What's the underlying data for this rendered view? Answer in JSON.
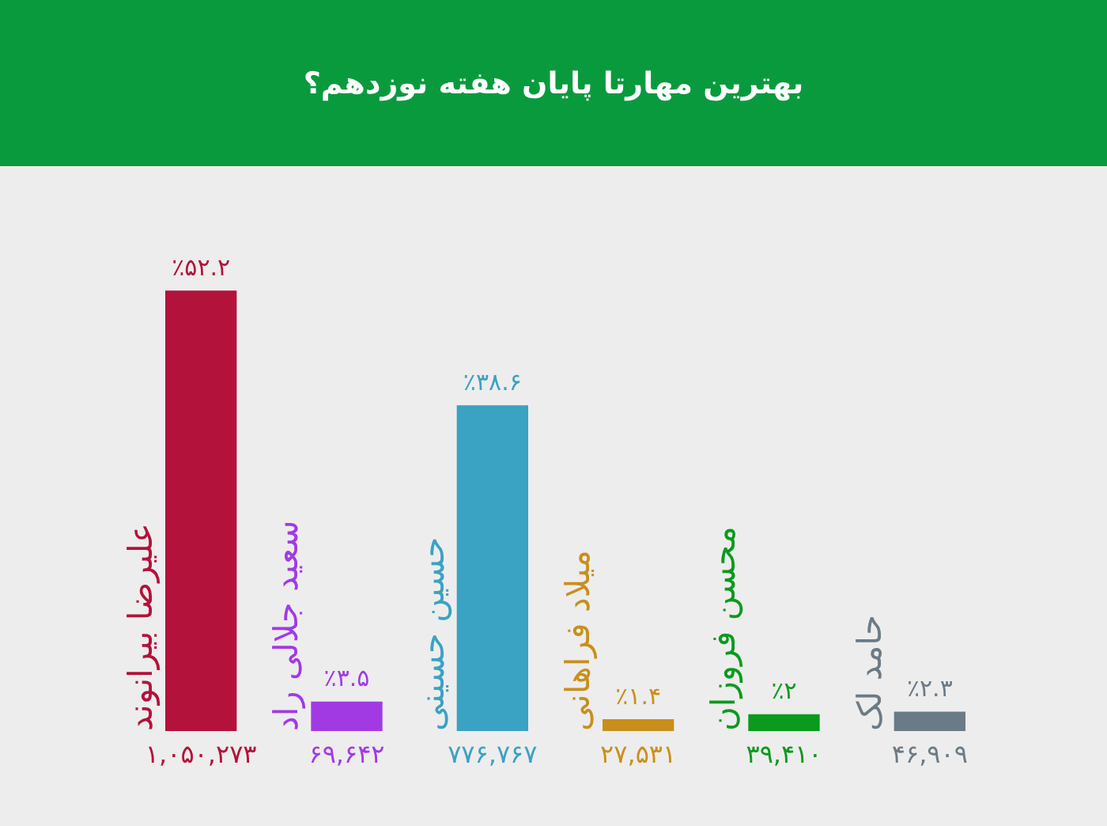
{
  "chart_data": {
    "type": "bar",
    "title": "بهترین مهارتا پایان هفته نوزدهم؟",
    "categories": [
      "علیرضا بیرانوند",
      "سعید جلالی راد",
      "حسین حسینی",
      "میلاد فراهانی",
      "محسن فروزان",
      "حامد لک"
    ],
    "values": [
      52.2,
      3.5,
      38.6,
      1.4,
      2,
      2.3
    ],
    "value_labels": [
      "٪۵۲.۲",
      "٪۳.۵",
      "٪۳۸.۶",
      "٪۱.۴",
      "٪۲",
      "٪۲.۳"
    ],
    "colors": [
      "#b3123b",
      "#a23ae4",
      "#3aa2c3",
      "#c98f1c",
      "#0b9a1c",
      "#6b7b86"
    ],
    "tick_labels": false,
    "annotations": [
      "۱,۰۵۰,۲۷۳",
      "۶۹,۶۴۲",
      "۷۷۶,۷۶۷",
      "۲۷,۵۳۱",
      "۳۹,۴۱۰",
      "۴۶,۹۰۹"
    ]
  }
}
